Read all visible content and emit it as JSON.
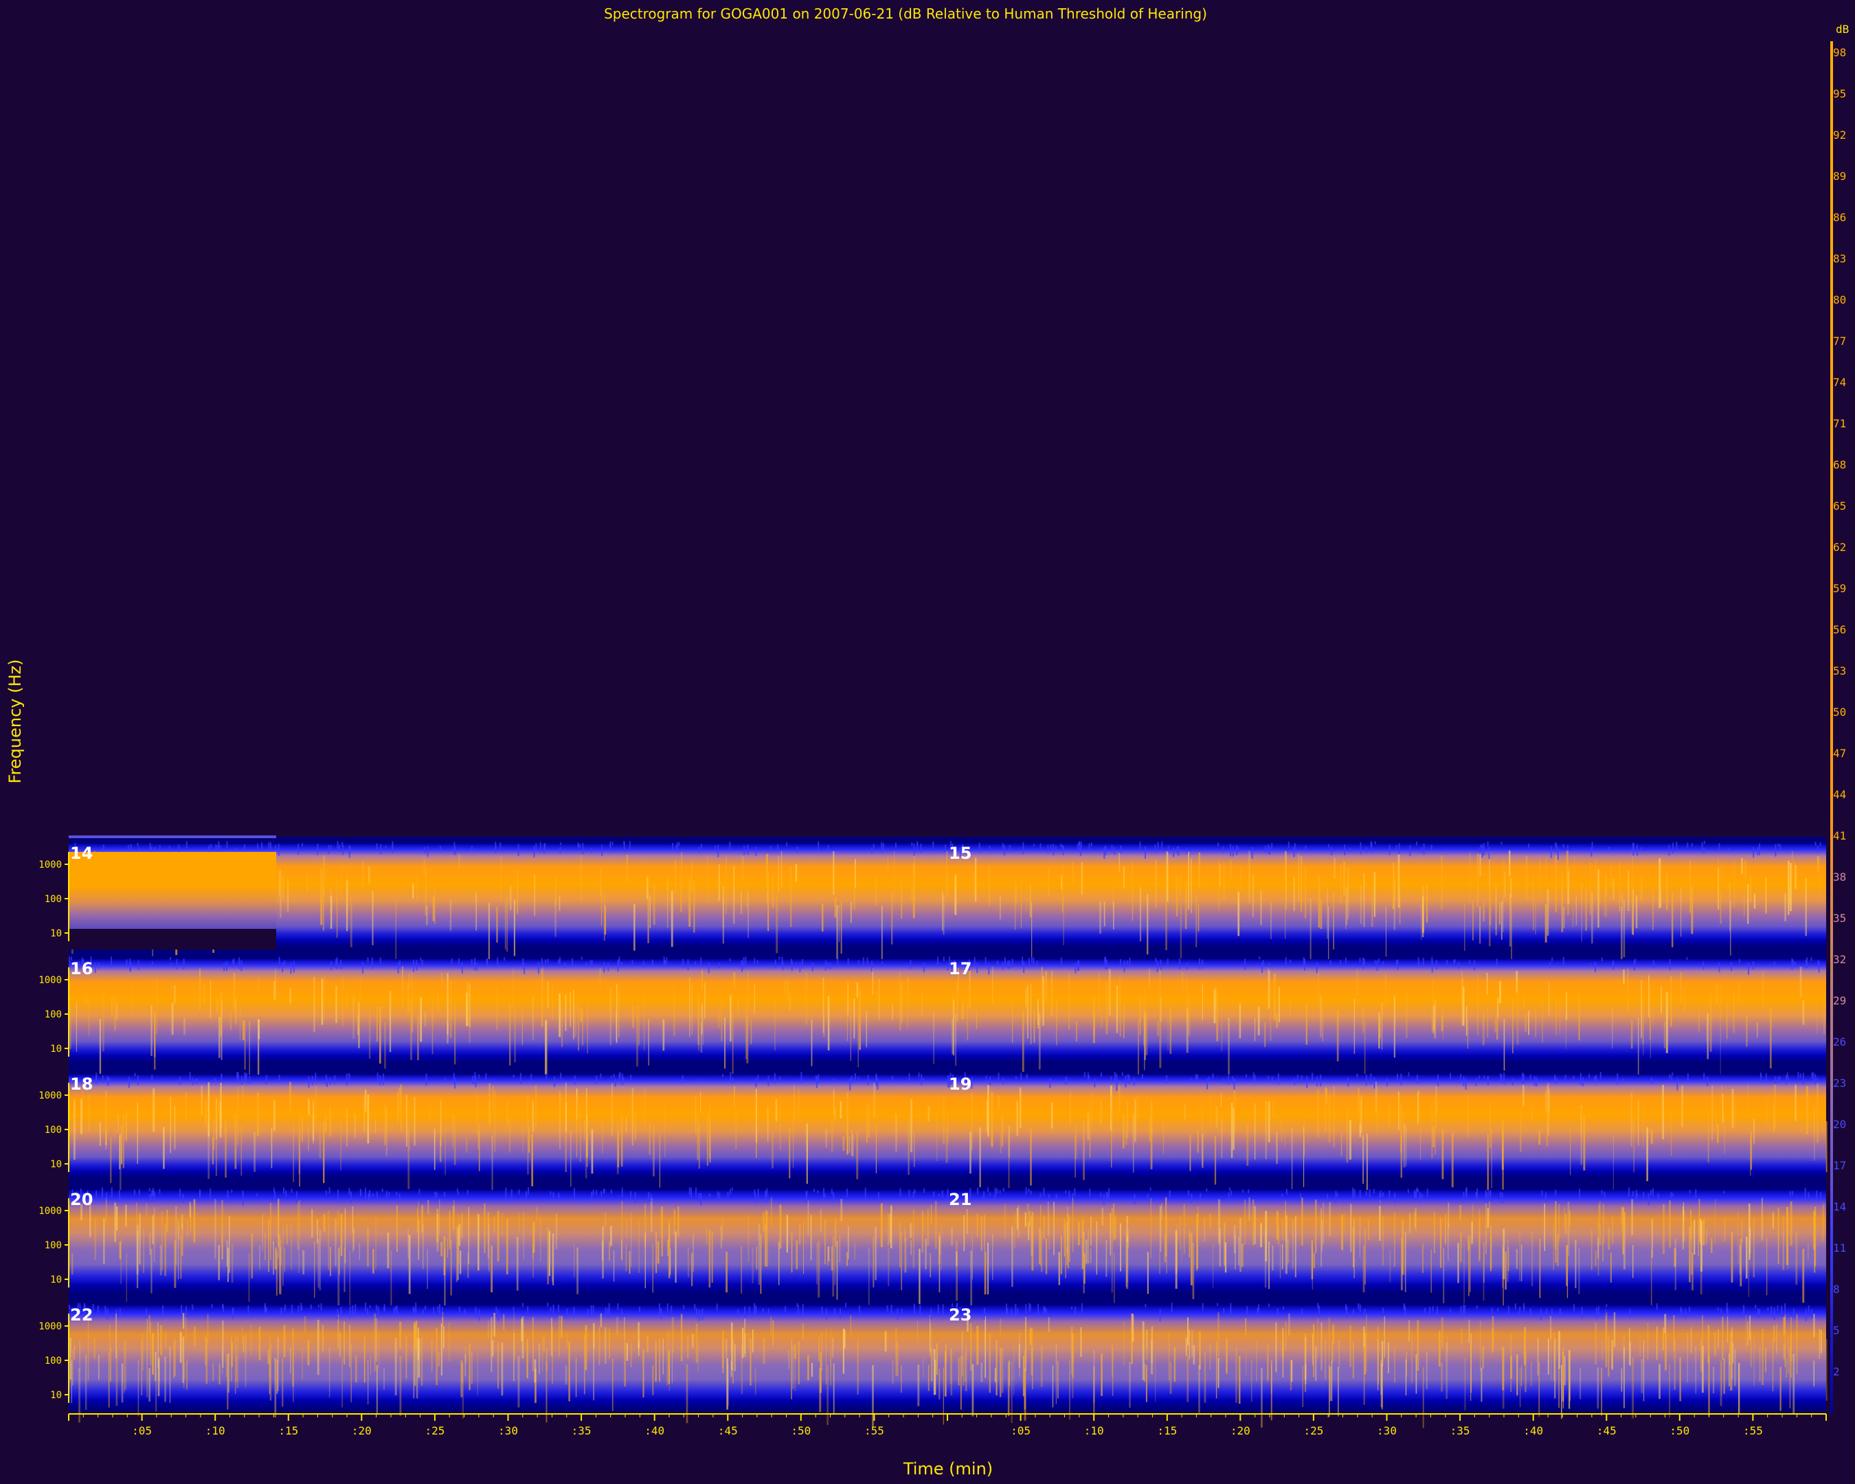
{
  "chart_data": {
    "type": "heatmap",
    "title": "Spectrogram for GOGA001 on 2007-06-21 (dB Relative to Human Threshold of Hearing)",
    "xlabel": "Time (min)",
    "ylabel": "Frequency (Hz)",
    "x_tick_labels": [
      ":05",
      ":10",
      ":15",
      ":20",
      ":25",
      ":30",
      ":35",
      ":40",
      ":45",
      ":50",
      ":55",
      "",
      ":05",
      ":10",
      ":15",
      ":20",
      ":25",
      ":30",
      ":35",
      ":40",
      ":45",
      ":50",
      ":55"
    ],
    "y_tick_labels": [
      "1000",
      "100",
      "10"
    ],
    "colorbar": {
      "unit_label": "dB",
      "ticks": [
        98,
        95,
        92,
        89,
        86,
        83,
        80,
        77,
        74,
        71,
        68,
        65,
        62,
        59,
        56,
        53,
        50,
        47,
        44,
        41,
        38,
        35,
        32,
        29,
        26,
        23,
        20,
        17,
        14,
        11,
        8,
        5,
        2
      ]
    },
    "hours": [
      {
        "label": "14",
        "col": 0,
        "row": 0
      },
      {
        "label": "15",
        "col": 1,
        "row": 0
      },
      {
        "label": "16",
        "col": 0,
        "row": 1
      },
      {
        "label": "17",
        "col": 1,
        "row": 1
      },
      {
        "label": "18",
        "col": 0,
        "row": 2
      },
      {
        "label": "19",
        "col": 1,
        "row": 2
      },
      {
        "label": "20",
        "col": 0,
        "row": 3
      },
      {
        "label": "21",
        "col": 1,
        "row": 3
      },
      {
        "label": "22",
        "col": 0,
        "row": 4
      },
      {
        "label": "23",
        "col": 1,
        "row": 4
      }
    ],
    "colors": {
      "background": "#1a0636",
      "low": "#00007a",
      "mid": "#2b2bff",
      "high": "#ffa500",
      "axis": "#ffe800"
    }
  }
}
